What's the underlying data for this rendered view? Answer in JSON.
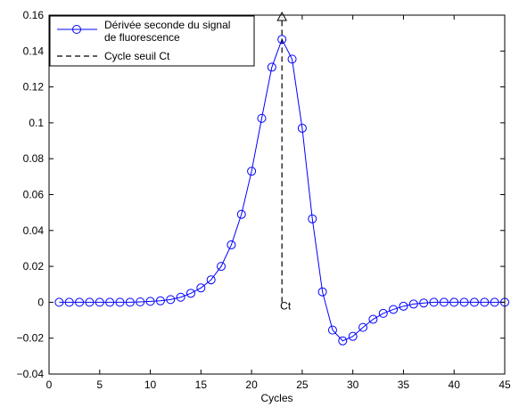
{
  "chart_data": {
    "type": "line",
    "title": "",
    "xlabel": "Cycles",
    "ylabel": "",
    "xlim": [
      0,
      45
    ],
    "ylim": [
      -0.04,
      0.16
    ],
    "xticks": [
      0,
      5,
      10,
      15,
      20,
      25,
      30,
      35,
      40,
      45
    ],
    "xtick_labels": [
      "0",
      "5",
      "10",
      "15",
      "20",
      "25",
      "30",
      "35",
      "40",
      "45"
    ],
    "yticks": [
      -0.04,
      -0.02,
      0,
      0.02,
      0.04,
      0.06,
      0.08,
      0.1,
      0.12,
      0.14,
      0.16
    ],
    "ytick_labels": [
      "−0.04",
      "−0.02",
      "0",
      "0.02",
      "0.04",
      "0.06",
      "0.08",
      "0.1",
      "0.12",
      "0.14",
      "0.16"
    ],
    "grid": false,
    "legend_position": "top-left",
    "series": [
      {
        "name": "Dérivée seconde du signal de fluorescence",
        "legend_lines": [
          "Dérivée seconde du signal",
          "de fluorescence"
        ],
        "style": "solid line with circle markers",
        "color": "#0000ff",
        "x": [
          1,
          2,
          3,
          4,
          5,
          6,
          7,
          8,
          9,
          10,
          11,
          12,
          13,
          14,
          15,
          16,
          17,
          18,
          19,
          20,
          21,
          22,
          23,
          24,
          25,
          26,
          27,
          28,
          29,
          30,
          31,
          32,
          33,
          34,
          35,
          36,
          37,
          38,
          39,
          40,
          41,
          42,
          43,
          44,
          45
        ],
        "y": [
          0,
          0,
          0,
          0,
          0,
          0,
          0,
          0,
          0.0002,
          0.0005,
          0.0008,
          0.0015,
          0.0028,
          0.005,
          0.008,
          0.0125,
          0.02,
          0.032,
          0.049,
          0.073,
          0.1025,
          0.131,
          0.1465,
          0.1355,
          0.097,
          0.0465,
          0.0058,
          -0.0155,
          -0.0215,
          -0.019,
          -0.014,
          -0.0095,
          -0.0062,
          -0.004,
          -0.0022,
          -0.001,
          -0.0004,
          0,
          0,
          0,
          0,
          0,
          0,
          0,
          0
        ]
      },
      {
        "name": "Cycle seuil Ct",
        "style": "dashed line",
        "color": "#000000",
        "x": [
          23,
          23
        ],
        "y": [
          0,
          0.159
        ]
      }
    ],
    "annotations": [
      {
        "text": "Ct",
        "x": 23,
        "y": 0
      },
      {
        "text": "",
        "marker": "triangle",
        "x": 23,
        "y": 0.159
      }
    ]
  }
}
